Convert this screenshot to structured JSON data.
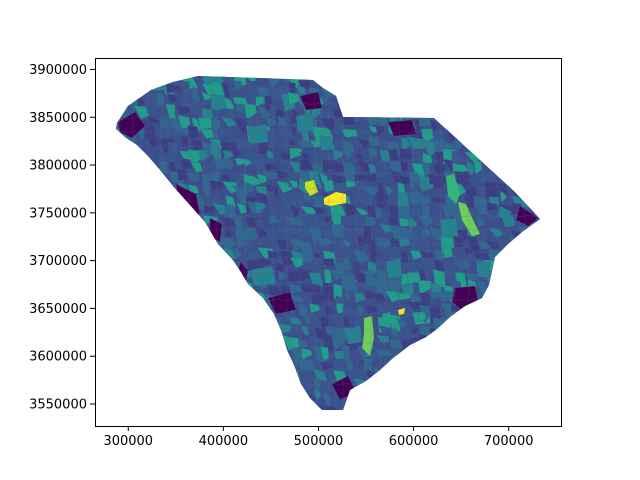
{
  "chart_data": {
    "type": "choropleth-map",
    "title": "",
    "xlabel": "",
    "ylabel": "",
    "xlim": [
      265000,
      755000
    ],
    "ylim": [
      3527000,
      3912000
    ],
    "xticks": [
      300000,
      400000,
      500000,
      600000,
      700000
    ],
    "yticks": [
      3550000,
      3600000,
      3650000,
      3700000,
      3750000,
      3800000,
      3850000,
      3900000
    ],
    "xtick_labels": [
      "300000",
      "400000",
      "500000",
      "600000",
      "700000"
    ],
    "ytick_labels": [
      "3550000",
      "3600000",
      "3650000",
      "3700000",
      "3750000",
      "3800000",
      "3850000",
      "3900000"
    ],
    "colormap": "viridis",
    "grid": false,
    "legend": "none",
    "colors": {
      "dark_purple": "#440154",
      "indigo": "#3b3f82",
      "slate_blue": "#39568c",
      "blue": "#31688e",
      "teal": "#26828e",
      "green_teal": "#1f9e89",
      "green": "#35b779",
      "light_green": "#6ece58",
      "yellow": "#fde725",
      "yellow_green": "#c8e020"
    }
  }
}
